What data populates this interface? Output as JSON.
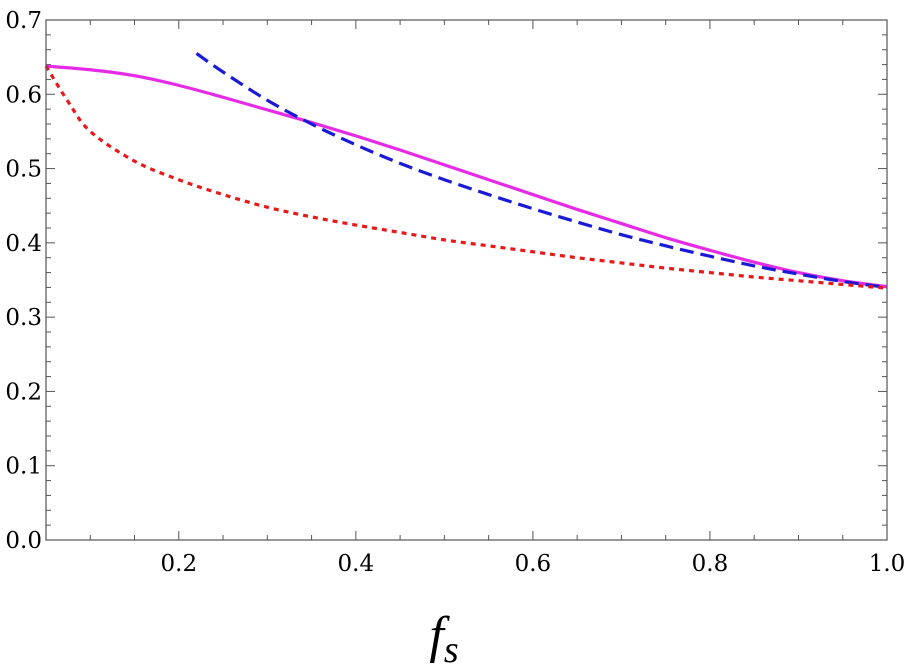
{
  "chart_data": {
    "type": "line",
    "title": "",
    "xlabel": {
      "main": "f",
      "sub": "s"
    },
    "ylabel": "",
    "xlim": [
      0.05,
      1.0
    ],
    "ylim": [
      0.0,
      0.7
    ],
    "x_ticks": [
      "0.2",
      "0.4",
      "0.6",
      "0.8",
      "1.0"
    ],
    "y_ticks": [
      "0.0",
      "0.1",
      "0.2",
      "0.3",
      "0.4",
      "0.5",
      "0.6",
      "0.7"
    ],
    "grid": false,
    "legend": "none",
    "series": [
      {
        "style": "solid",
        "color": "#e62be6",
        "x": [
          0.05,
          0.1,
          0.15,
          0.2,
          0.25,
          0.3,
          0.35,
          0.4,
          0.45,
          0.5,
          0.55,
          0.6,
          0.65,
          0.7,
          0.75,
          0.8,
          0.85,
          0.9,
          0.95,
          1.0
        ],
        "y": [
          0.638,
          0.633,
          0.625,
          0.612,
          0.596,
          0.579,
          0.562,
          0.544,
          0.525,
          0.505,
          0.485,
          0.465,
          0.445,
          0.426,
          0.407,
          0.39,
          0.374,
          0.36,
          0.349,
          0.341
        ]
      },
      {
        "style": "dashed",
        "color": "#1a1ad6",
        "x": [
          0.22,
          0.25,
          0.3,
          0.35,
          0.4,
          0.45,
          0.5,
          0.55,
          0.6,
          0.65,
          0.7,
          0.75,
          0.8,
          0.85,
          0.9,
          0.95,
          1.0
        ],
        "y": [
          0.655,
          0.63,
          0.592,
          0.56,
          0.532,
          0.507,
          0.485,
          0.465,
          0.446,
          0.428,
          0.411,
          0.396,
          0.382,
          0.369,
          0.358,
          0.348,
          0.34
        ]
      },
      {
        "style": "dotted",
        "color": "#e61a1a",
        "x": [
          0.05,
          0.075,
          0.1,
          0.15,
          0.2,
          0.25,
          0.3,
          0.35,
          0.4,
          0.45,
          0.5,
          0.55,
          0.6,
          0.65,
          0.7,
          0.75,
          0.8,
          0.85,
          0.9,
          0.95,
          1.0
        ],
        "y": [
          0.638,
          0.59,
          0.55,
          0.51,
          0.485,
          0.465,
          0.448,
          0.435,
          0.424,
          0.414,
          0.404,
          0.396,
          0.388,
          0.38,
          0.373,
          0.366,
          0.36,
          0.354,
          0.349,
          0.344,
          0.339
        ]
      }
    ]
  }
}
